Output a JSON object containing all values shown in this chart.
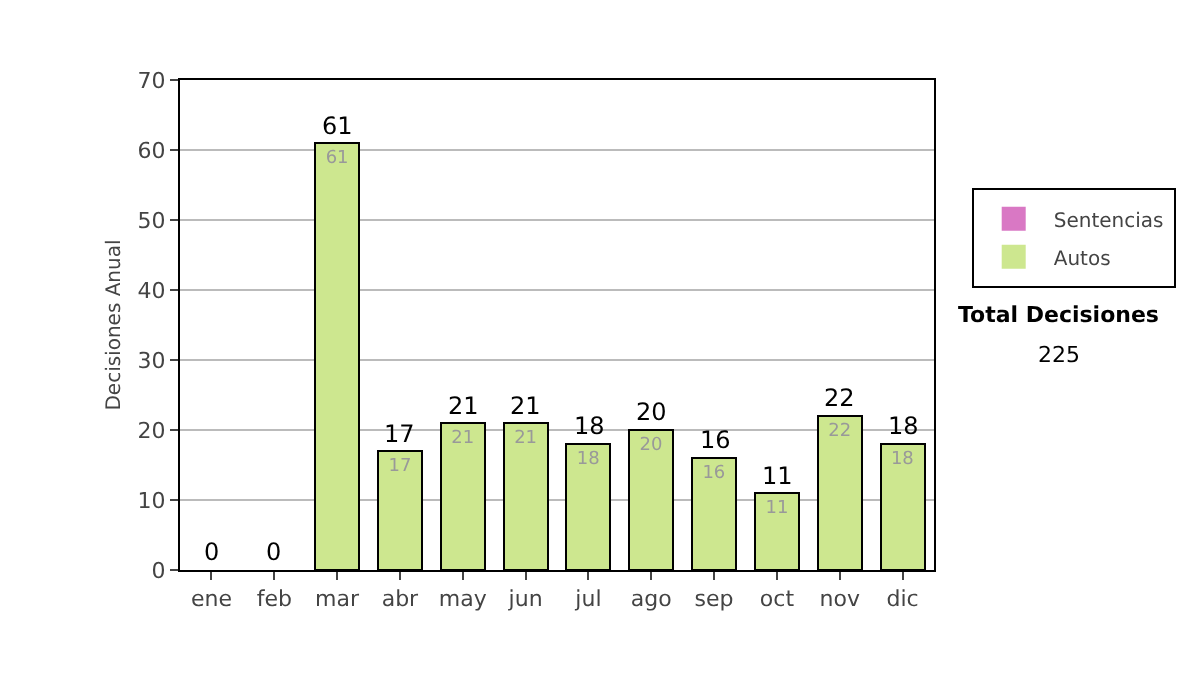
{
  "chart_data": {
    "type": "bar",
    "ylabel": "Decisiones Anual",
    "categories": [
      "ene",
      "feb",
      "mar",
      "abr",
      "may",
      "jun",
      "jul",
      "ago",
      "sep",
      "oct",
      "nov",
      "dic"
    ],
    "stacked": true,
    "series": [
      {
        "name": "Sentencias",
        "color": "#d978c4",
        "values": [
          0,
          0,
          0,
          0,
          0,
          0,
          0,
          0,
          0,
          0,
          0,
          0
        ]
      },
      {
        "name": "Autos",
        "color": "#cde78f",
        "values": [
          0,
          0,
          61,
          17,
          21,
          21,
          18,
          20,
          16,
          11,
          22,
          18
        ],
        "value_labels": [
          null,
          null,
          "61",
          "17",
          "21",
          "21",
          "18",
          "20",
          "16",
          "11",
          "22",
          "18"
        ]
      }
    ],
    "totals": [
      "0",
      "0",
      "61",
      "17",
      "21",
      "21",
      "18",
      "20",
      "16",
      "11",
      "22",
      "18"
    ],
    "ylim": [
      0,
      70
    ],
    "yticks": [
      0,
      10,
      20,
      30,
      40,
      50,
      60,
      70
    ],
    "grid": "y",
    "legend": "right",
    "annotations": [
      "Total Decisiones",
      "225"
    ]
  }
}
